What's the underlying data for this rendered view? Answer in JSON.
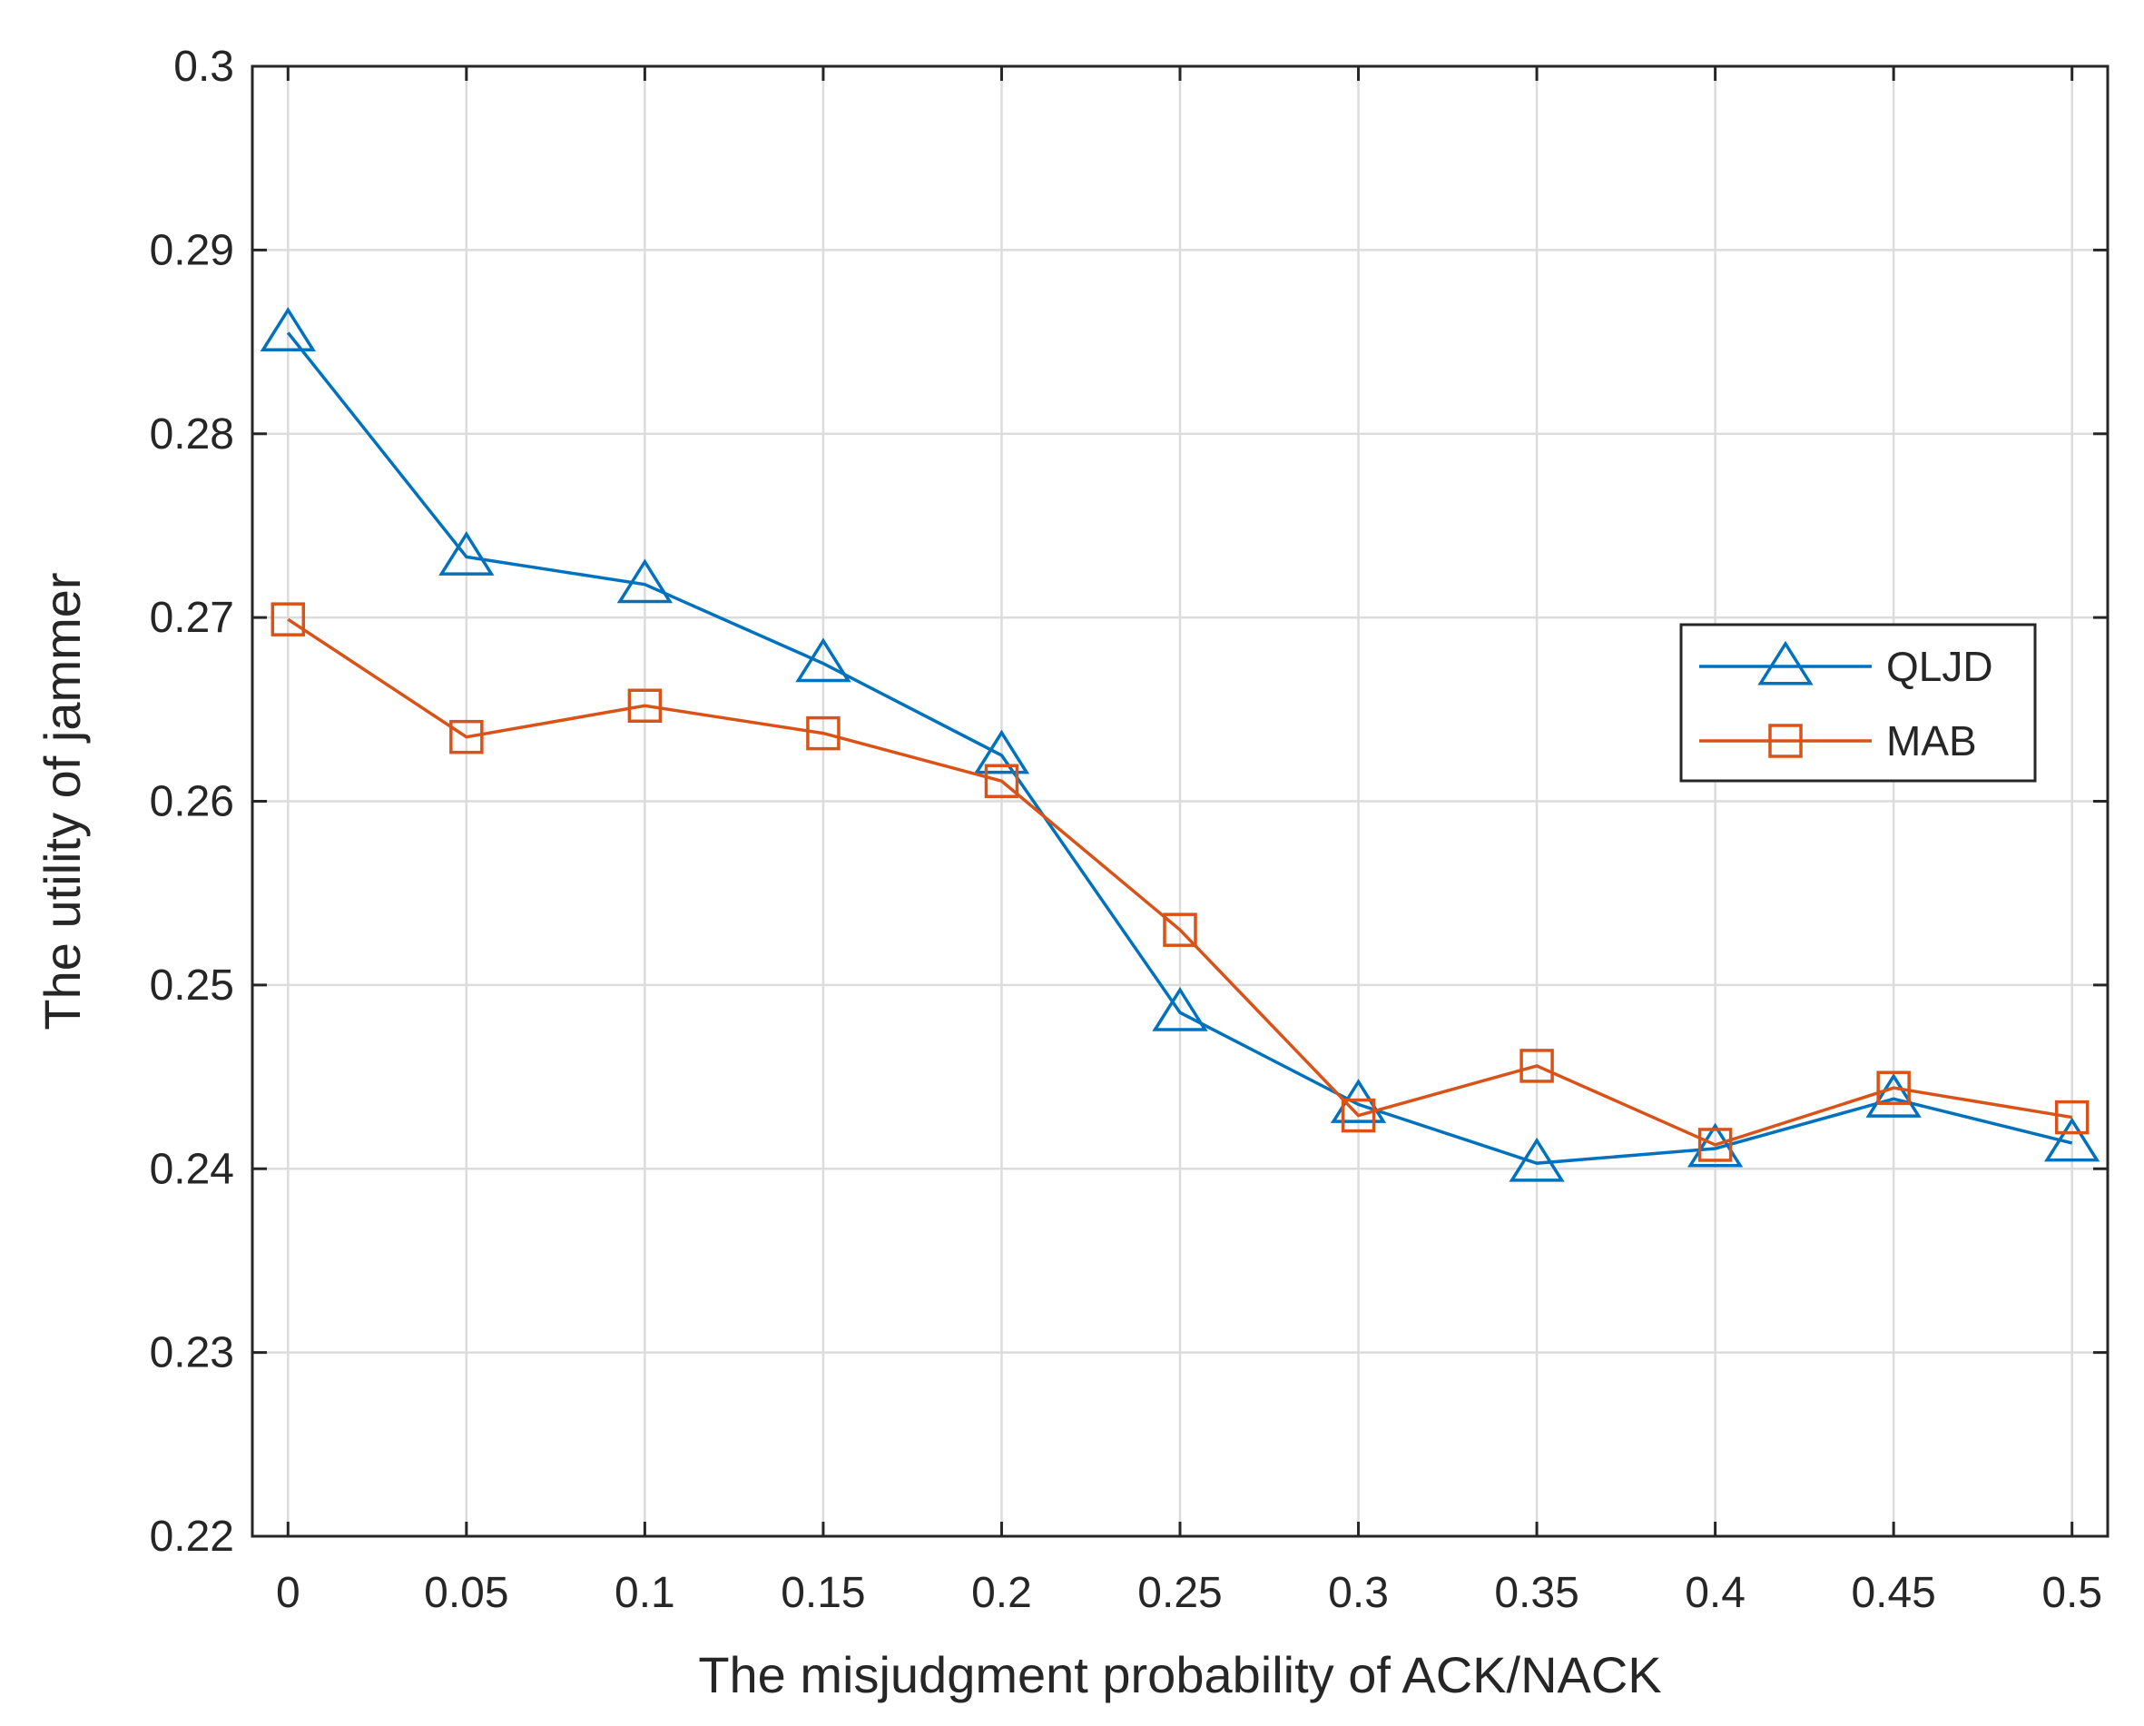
{
  "chart_data": {
    "type": "line",
    "title": "",
    "xlabel": "The misjudgment probability of ACK/NACK",
    "ylabel": "The utility of jammer",
    "x": [
      0,
      0.05,
      0.1,
      0.15,
      0.2,
      0.25,
      0.3,
      0.35,
      0.4,
      0.45,
      0.5
    ],
    "xticks": [
      "0",
      "0.05",
      "0.1",
      "0.15",
      "0.2",
      "0.25",
      "0.3",
      "0.35",
      "0.4",
      "0.45",
      "0.5"
    ],
    "yticks": [
      "0.22",
      "0.23",
      "0.24",
      "0.25",
      "0.26",
      "0.27",
      "0.28",
      "0.29",
      "0.3"
    ],
    "xlim": [
      -0.01,
      0.51
    ],
    "ylim": [
      0.22,
      0.3
    ],
    "grid": true,
    "legend_position": "right",
    "series": [
      {
        "name": "QLJD",
        "marker": "triangle",
        "color": "#0072BD",
        "values": [
          0.2855,
          0.2733,
          0.2718,
          0.2675,
          0.2625,
          0.2485,
          0.2435,
          0.2403,
          0.2411,
          0.2438,
          0.2414
        ]
      },
      {
        "name": "MAB",
        "marker": "square",
        "color": "#D95319",
        "values": [
          0.2699,
          0.2635,
          0.2652,
          0.2637,
          0.2611,
          0.253,
          0.2429,
          0.2456,
          0.2413,
          0.2444,
          0.2428
        ]
      }
    ]
  }
}
